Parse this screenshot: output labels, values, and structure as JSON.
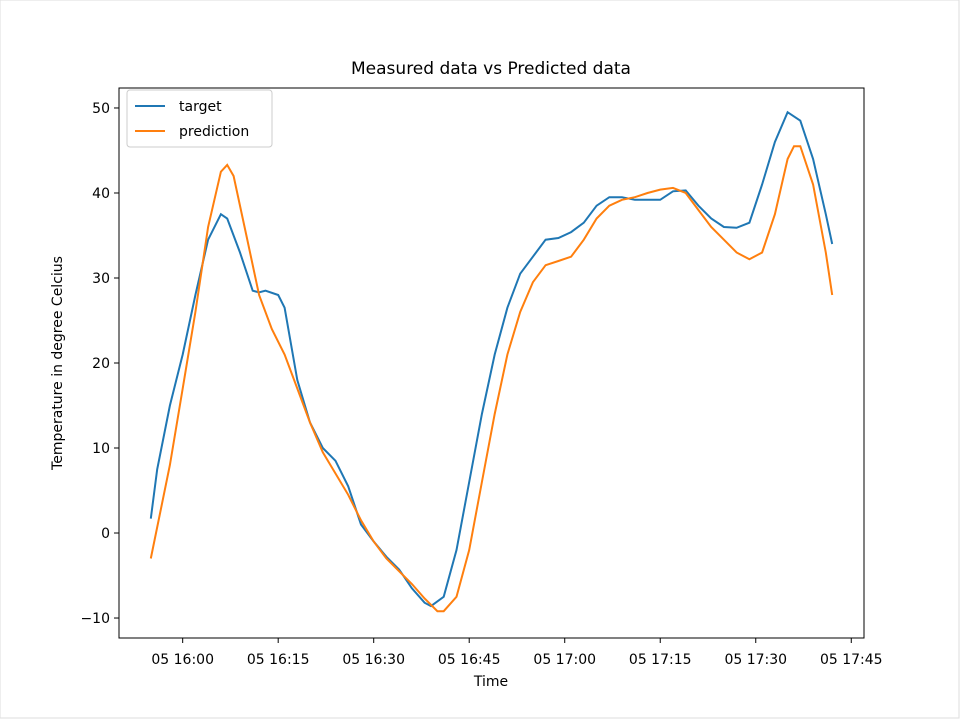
{
  "chart_data": {
    "type": "line",
    "title": "Measured data vs Predicted data",
    "xlabel": "Time",
    "ylabel": "Temperature in degree Celcius",
    "xlim": [
      "05 15:50",
      "05 17:47"
    ],
    "xticks": [
      "05 16:00",
      "05 16:15",
      "05 16:30",
      "05 16:45",
      "05 17:00",
      "05 17:15",
      "05 17:30",
      "05 17:45"
    ],
    "ylim": [
      -12.35,
      52.35
    ],
    "yticks": [
      {
        "value": -10,
        "label": "−10"
      },
      0,
      10,
      20,
      30,
      40,
      50
    ],
    "legend": "upper left",
    "grid": false,
    "series": [
      {
        "name": "target",
        "color": "#1f77b4",
        "x": [
          "05 15:55",
          "05 15:56",
          "05 15:58",
          "05 16:00",
          "05 16:02",
          "05 16:04",
          "05 16:06",
          "05 16:07",
          "05 16:09",
          "05 16:11",
          "05 16:12",
          "05 16:13",
          "05 16:15",
          "05 16:16",
          "05 16:18",
          "05 16:20",
          "05 16:22",
          "05 16:24",
          "05 16:26",
          "05 16:28",
          "05 16:30",
          "05 16:32",
          "05 16:34",
          "05 16:36",
          "05 16:38",
          "05 16:39",
          "05 16:41",
          "05 16:43",
          "05 16:45",
          "05 16:47",
          "05 16:49",
          "05 16:51",
          "05 16:53",
          "05 16:55",
          "05 16:57",
          "05 16:59",
          "05 17:01",
          "05 17:03",
          "05 17:05",
          "05 17:07",
          "05 17:09",
          "05 17:11",
          "05 17:13",
          "05 17:15",
          "05 17:17",
          "05 17:19",
          "05 17:21",
          "05 17:23",
          "05 17:25",
          "05 17:27",
          "05 17:29",
          "05 17:31",
          "05 17:33",
          "05 17:35",
          "05 17:37",
          "05 17:39",
          "05 17:41",
          "05 17:42"
        ],
        "values": [
          1.7,
          7.5,
          15,
          21,
          28,
          34.5,
          37.5,
          37,
          33,
          28.5,
          28.3,
          28.5,
          28,
          26.5,
          18,
          13,
          10,
          8.5,
          5.5,
          1,
          -1,
          -2.8,
          -4.3,
          -6.5,
          -8.2,
          -8.6,
          -7.5,
          -2,
          6,
          14,
          21,
          26.5,
          30.5,
          32.5,
          34.5,
          34.7,
          35.4,
          36.5,
          38.5,
          39.5,
          39.5,
          39.2,
          39.2,
          39.2,
          40.2,
          40.3,
          38.5,
          37,
          36,
          35.9,
          36.5,
          41,
          46,
          49.5,
          48.5,
          44,
          37.5,
          34
        ]
      },
      {
        "name": "prediction",
        "color": "#ff7f0e",
        "x": [
          "05 15:55",
          "05 15:58",
          "05 16:00",
          "05 16:02",
          "05 16:04",
          "05 16:06",
          "05 16:07",
          "05 16:08",
          "05 16:10",
          "05 16:12",
          "05 16:14",
          "05 16:16",
          "05 16:18",
          "05 16:20",
          "05 16:22",
          "05 16:24",
          "05 16:26",
          "05 16:28",
          "05 16:30",
          "05 16:32",
          "05 16:34",
          "05 16:36",
          "05 16:38",
          "05 16:40",
          "05 16:41",
          "05 16:43",
          "05 16:45",
          "05 16:47",
          "05 16:49",
          "05 16:51",
          "05 16:53",
          "05 16:55",
          "05 16:57",
          "05 16:59",
          "05 17:01",
          "05 17:03",
          "05 17:05",
          "05 17:07",
          "05 17:09",
          "05 17:11",
          "05 17:13",
          "05 17:15",
          "05 17:17",
          "05 17:19",
          "05 17:21",
          "05 17:23",
          "05 17:25",
          "05 17:27",
          "05 17:29",
          "05 17:31",
          "05 17:33",
          "05 17:35",
          "05 17:36",
          "05 17:37",
          "05 17:39",
          "05 17:41",
          "05 17:42"
        ],
        "values": [
          -3,
          8,
          17,
          26,
          36,
          42.5,
          43.3,
          42,
          35,
          28,
          24,
          21,
          17,
          13,
          9.5,
          7,
          4.5,
          1.5,
          -1,
          -3,
          -4.5,
          -6,
          -7.7,
          -9.2,
          -9.2,
          -7.5,
          -2,
          6,
          14,
          21,
          26,
          29.5,
          31.5,
          32,
          32.5,
          34.5,
          37,
          38.5,
          39.2,
          39.5,
          40,
          40.4,
          40.6,
          40,
          38,
          36,
          34.5,
          33,
          32.2,
          33,
          37.5,
          44,
          45.5,
          45.5,
          41,
          33,
          28
        ]
      }
    ]
  }
}
